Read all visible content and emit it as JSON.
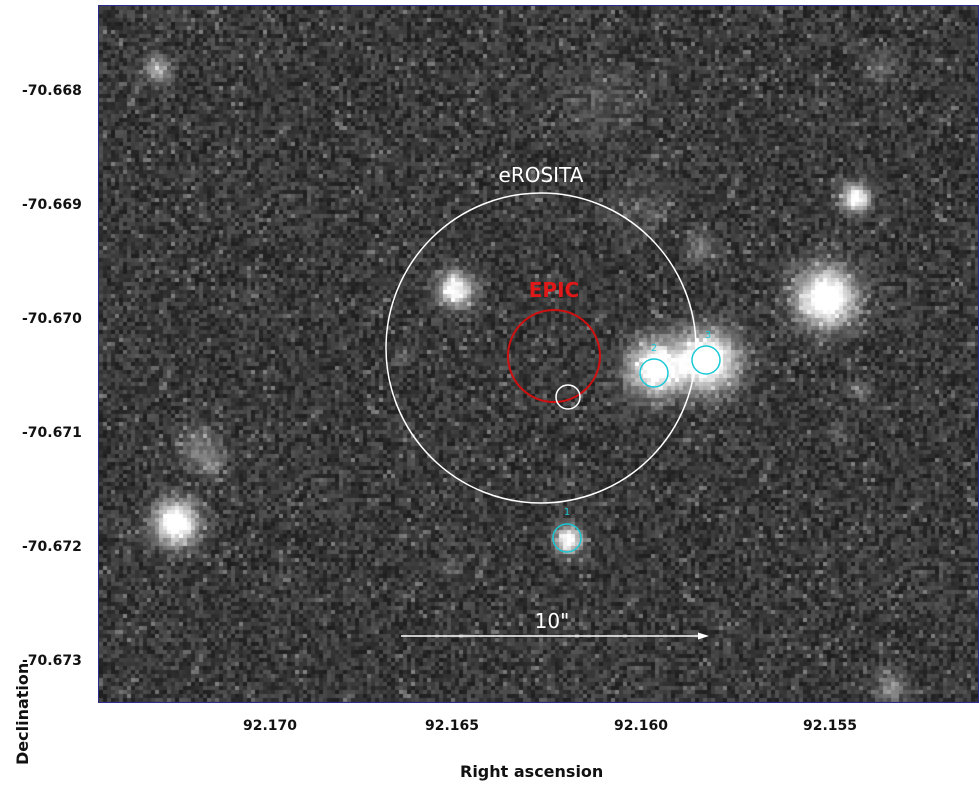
{
  "axes": {
    "xlabel": "Right ascension",
    "ylabel": "Declination",
    "x_ticks": [
      "92.170",
      "92.165",
      "92.160",
      "92.155"
    ],
    "y_ticks": [
      "-70.668",
      "-70.669",
      "-70.670",
      "-70.671",
      "-70.672",
      "-70.673"
    ]
  },
  "annotations": {
    "erosita_label": "eROSITA",
    "epic_label": "EPIC",
    "scale_bar_label": "10\"",
    "source_labels": [
      "1",
      "2",
      "3"
    ]
  },
  "colors": {
    "erosita": "#ffffff",
    "epic": "#d01010",
    "sources": "#19c9d6",
    "scale_bar": "#ffffff",
    "background": "#262626"
  }
}
